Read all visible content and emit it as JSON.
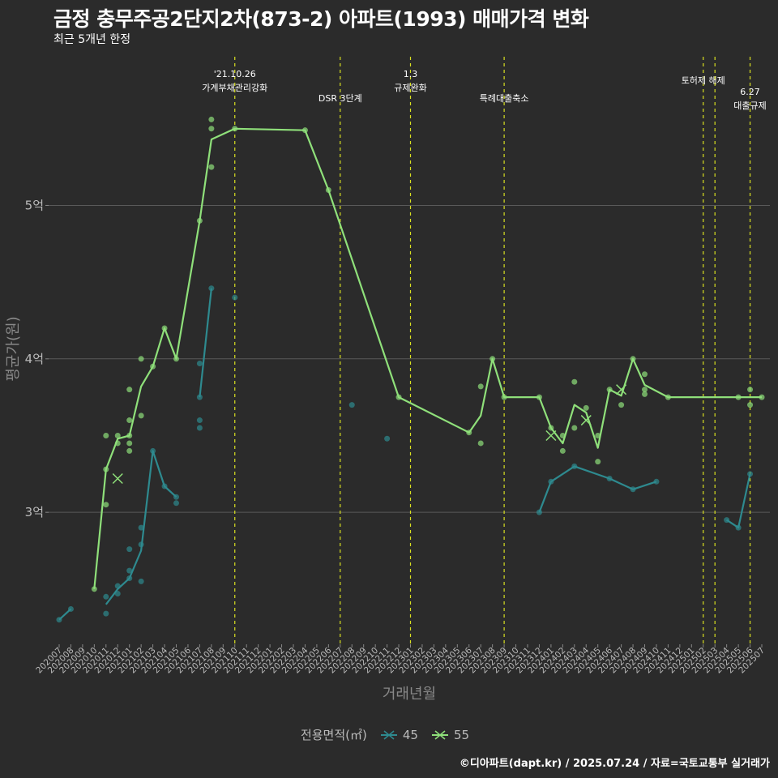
{
  "title": "금정 충무주공2단지2차(873-2) 아파트(1993) 매매가격 변화",
  "subtitle": "최근 5개년 한정",
  "caption": "©디아파트(dapt.kr) / 2025.07.24 / 자료=국토교통부 실거래가",
  "legend_title": "전용면적(㎡)",
  "colors": {
    "background": "#2b2b2b",
    "grid": "#5a5a5a",
    "s45": "#2e8a8f",
    "s55": "#8fe07a",
    "event": "#d9e021"
  },
  "chart_data": {
    "type": "line",
    "xlabel": "거래년월",
    "ylabel": "평균가(원)",
    "ylim": [
      2.14,
      5.99
    ],
    "y_ticks": [
      {
        "v": 3,
        "label": "3억"
      },
      {
        "v": 4,
        "label": "4억"
      },
      {
        "v": 5,
        "label": "5억"
      }
    ],
    "x_categories": [
      "202007",
      "202008",
      "202009",
      "202010",
      "202011",
      "202012",
      "202101",
      "202102",
      "202103",
      "202104",
      "202105",
      "202106",
      "202107",
      "202108",
      "202109",
      "202110",
      "202111",
      "202112",
      "202201",
      "202202",
      "202203",
      "202204",
      "202205",
      "202206",
      "202207",
      "202208",
      "202209",
      "202210",
      "202211",
      "202212",
      "202301",
      "202302",
      "202303",
      "202304",
      "202305",
      "202306",
      "202307",
      "202308",
      "202309",
      "202310",
      "202311",
      "202312",
      "202401",
      "202402",
      "202403",
      "202404",
      "202405",
      "202406",
      "202407",
      "202408",
      "202409",
      "202410",
      "202411",
      "202412",
      "202501",
      "202502",
      "202503",
      "202504",
      "202505",
      "202506",
      "202507"
    ],
    "series": [
      {
        "name": "45",
        "lines": [
          [
            [
              "202007",
              2.3
            ],
            [
              "202008",
              2.37
            ]
          ],
          [
            [
              "202011",
              2.4
            ],
            [
              "202012",
              2.5
            ],
            [
              "202101",
              2.57
            ],
            [
              "202102",
              2.75
            ],
            [
              "202103",
              3.4
            ],
            [
              "202104",
              3.17
            ],
            [
              "202105",
              3.1
            ]
          ],
          [
            [
              "202107",
              3.75
            ],
            [
              "202108",
              4.46
            ]
          ],
          [
            [
              "202312",
              3.0
            ],
            [
              "202401",
              3.2
            ],
            [
              "202403",
              3.3
            ],
            [
              "202406",
              3.22
            ],
            [
              "202408",
              3.15
            ],
            [
              "202410",
              3.2
            ]
          ],
          [
            [
              "202504",
              2.95
            ],
            [
              "202505",
              2.9
            ],
            [
              "202506",
              3.25
            ]
          ]
        ],
        "points": [
          [
            "202007",
            2.3
          ],
          [
            "202008",
            2.37
          ],
          [
            "202011",
            2.34
          ],
          [
            "202011",
            2.45
          ],
          [
            "202012",
            2.47
          ],
          [
            "202012",
            2.52
          ],
          [
            "202101",
            2.57
          ],
          [
            "202101",
            2.62
          ],
          [
            "202101",
            2.76
          ],
          [
            "202102",
            2.55
          ],
          [
            "202102",
            2.79
          ],
          [
            "202102",
            2.9
          ],
          [
            "202103",
            3.4
          ],
          [
            "202104",
            3.17
          ],
          [
            "202105",
            3.06
          ],
          [
            "202105",
            3.1
          ],
          [
            "202107",
            3.55
          ],
          [
            "202107",
            3.6
          ],
          [
            "202107",
            3.75
          ],
          [
            "202107",
            3.97
          ],
          [
            "202108",
            4.46
          ],
          [
            "202110",
            4.4
          ],
          [
            "202208",
            3.7
          ],
          [
            "202211",
            3.48
          ],
          [
            "202312",
            3.0
          ],
          [
            "202401",
            3.2
          ],
          [
            "202403",
            3.3
          ],
          [
            "202406",
            3.22
          ],
          [
            "202408",
            3.15
          ],
          [
            "202410",
            3.2
          ],
          [
            "202504",
            2.95
          ],
          [
            "202505",
            2.9
          ],
          [
            "202506",
            3.25
          ]
        ],
        "cross": []
      },
      {
        "name": "55",
        "lines": [
          [
            [
              "202010",
              2.5
            ],
            [
              "202011",
              3.28
            ],
            [
              "202012",
              3.48
            ],
            [
              "202101",
              3.5
            ],
            [
              "202102",
              3.82
            ],
            [
              "202103",
              3.95
            ],
            [
              "202104",
              4.2
            ],
            [
              "202105",
              4.0
            ],
            [
              "202107",
              4.9
            ],
            [
              "202108",
              5.43
            ],
            [
              "202110",
              5.5
            ],
            [
              "202204",
              5.49
            ],
            [
              "202206",
              5.1
            ],
            [
              "202212",
              3.75
            ],
            [
              "202306",
              3.52
            ],
            [
              "202307",
              3.63
            ],
            [
              "202308",
              4.0
            ],
            [
              "202309",
              3.75
            ],
            [
              "202312",
              3.75
            ],
            [
              "202401",
              3.55
            ],
            [
              "202402",
              3.45
            ],
            [
              "202403",
              3.7
            ],
            [
              "202404",
              3.65
            ],
            [
              "202405",
              3.42
            ],
            [
              "202406",
              3.8
            ],
            [
              "202407",
              3.76
            ],
            [
              "202408",
              4.0
            ],
            [
              "202409",
              3.83
            ],
            [
              "202411",
              3.75
            ],
            [
              "202505",
              3.75
            ],
            [
              "202506",
              3.75
            ],
            [
              "202507",
              3.75
            ]
          ]
        ],
        "points": [
          [
            "202010",
            2.5
          ],
          [
            "202011",
            3.05
          ],
          [
            "202011",
            3.28
          ],
          [
            "202011",
            3.5
          ],
          [
            "202012",
            3.45
          ],
          [
            "202012",
            3.5
          ],
          [
            "202101",
            3.4
          ],
          [
            "202101",
            3.45
          ],
          [
            "202101",
            3.5
          ],
          [
            "202101",
            3.6
          ],
          [
            "202101",
            3.8
          ],
          [
            "202102",
            3.63
          ],
          [
            "202102",
            4.0
          ],
          [
            "202103",
            3.95
          ],
          [
            "202104",
            4.2
          ],
          [
            "202105",
            4.0
          ],
          [
            "202107",
            4.9
          ],
          [
            "202108",
            5.25
          ],
          [
            "202108",
            5.5
          ],
          [
            "202108",
            5.56
          ],
          [
            "202110",
            5.5
          ],
          [
            "202204",
            5.49
          ],
          [
            "202206",
            5.1
          ],
          [
            "202212",
            3.75
          ],
          [
            "202306",
            3.52
          ],
          [
            "202307",
            3.45
          ],
          [
            "202307",
            3.82
          ],
          [
            "202308",
            4.0
          ],
          [
            "202309",
            3.75
          ],
          [
            "202312",
            3.75
          ],
          [
            "202401",
            3.55
          ],
          [
            "202402",
            3.4
          ],
          [
            "202402",
            3.5
          ],
          [
            "202403",
            3.55
          ],
          [
            "202403",
            3.85
          ],
          [
            "202404",
            3.68
          ],
          [
            "202405",
            3.33
          ],
          [
            "202405",
            3.5
          ],
          [
            "202406",
            3.8
          ],
          [
            "202407",
            3.7
          ],
          [
            "202408",
            4.0
          ],
          [
            "202409",
            3.77
          ],
          [
            "202409",
            3.8
          ],
          [
            "202409",
            3.9
          ],
          [
            "202411",
            3.75
          ],
          [
            "202505",
            3.75
          ],
          [
            "202506",
            3.7
          ],
          [
            "202506",
            3.8
          ],
          [
            "202507",
            3.75
          ]
        ],
        "cross": [
          [
            "202012",
            3.22
          ],
          [
            "202401",
            3.5
          ],
          [
            "202404",
            3.6
          ],
          [
            "202407",
            3.8
          ]
        ]
      }
    ],
    "events": [
      {
        "month": "202110",
        "lines": [
          "'21.10.26",
          "가계부채관리강화"
        ],
        "label_row": 0
      },
      {
        "month": "202207",
        "lines": [
          "DSR 3단계"
        ],
        "label_row": 2
      },
      {
        "month": "202301",
        "lines": [
          "1.3",
          "규제완화"
        ],
        "label_row": 0
      },
      {
        "month": "202309",
        "lines": [
          "특례대출축소"
        ],
        "label_row": 2
      },
      {
        "month": "202502",
        "lines": [
          "토허제 해제"
        ],
        "label_row": 1
      },
      {
        "month": "202503",
        "lines": [],
        "label_row": 1
      },
      {
        "month": "202506",
        "lines": [
          "6.27",
          "대출규제"
        ],
        "label_row": 1
      }
    ]
  }
}
